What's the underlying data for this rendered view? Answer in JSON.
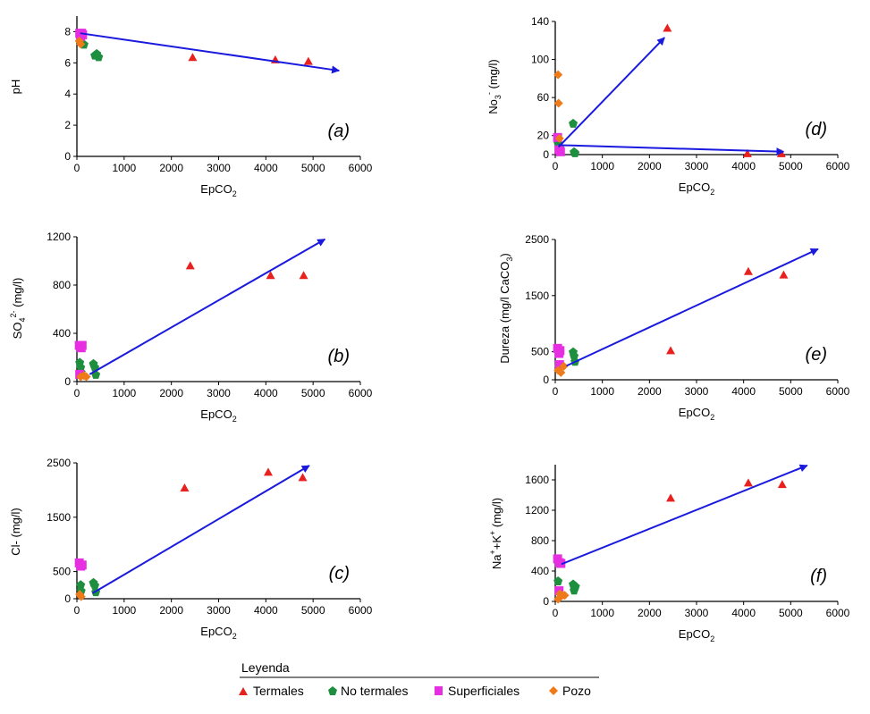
{
  "colors": {
    "axis": "#000000",
    "arrow": "#1a1adf",
    "termales": "#e8201e",
    "no_termales": "#1e8f3e",
    "superficiales": "#e62fe0",
    "pozo": "#ef7a1a"
  },
  "chart_data": [
    {
      "id": "a",
      "type": "scatter",
      "panel_label": "(a)",
      "xlabel": "EpCO",
      "xlabel_sub": "2",
      "ylabel": "pH",
      "xlim": [
        0,
        6000
      ],
      "ylim": [
        0,
        9
      ],
      "xticks": [
        0,
        1000,
        2000,
        3000,
        4000,
        5000,
        6000
      ],
      "yticks": [
        0,
        2,
        4,
        6,
        8
      ],
      "series": [
        {
          "name": "Termales",
          "points": [
            [
              2450,
              6.35
            ],
            [
              4200,
              6.2
            ],
            [
              4900,
              6.1
            ]
          ]
        },
        {
          "name": "No termales",
          "points": [
            [
              150,
              7.2
            ],
            [
              380,
              6.5
            ],
            [
              420,
              6.6
            ],
            [
              460,
              6.4
            ]
          ]
        },
        {
          "name": "Superficiales",
          "points": [
            [
              60,
              7.9
            ],
            [
              80,
              7.7
            ],
            [
              100,
              7.9
            ],
            [
              120,
              7.8
            ]
          ]
        },
        {
          "name": "Pozo",
          "points": [
            [
              50,
              7.4
            ],
            [
              80,
              7.2
            ]
          ]
        }
      ],
      "arrows": [
        [
          [
            70,
            7.9
          ],
          [
            5550,
            5.5
          ]
        ]
      ]
    },
    {
      "id": "d",
      "type": "scatter",
      "panel_label": "(d)",
      "xlabel": "EpCO",
      "xlabel_sub": "2",
      "ylabel": "No3- (mg/l)",
      "xlim": [
        0,
        6000
      ],
      "ylim": [
        0,
        140
      ],
      "xticks": [
        0,
        1000,
        2000,
        3000,
        4000,
        5000,
        6000
      ],
      "yticks": [
        0,
        20,
        60,
        100,
        140
      ],
      "series": [
        {
          "name": "Termales",
          "points": [
            [
              2380,
              133
            ],
            [
              4080,
              1
            ],
            [
              4800,
              1
            ]
          ]
        },
        {
          "name": "No termales",
          "points": [
            [
              60,
              12
            ],
            [
              100,
              7
            ],
            [
              380,
              33
            ],
            [
              400,
              3
            ],
            [
              420,
              2
            ]
          ]
        },
        {
          "name": "Superficiales",
          "points": [
            [
              50,
              18
            ],
            [
              80,
              5
            ],
            [
              110,
              3
            ]
          ]
        },
        {
          "name": "Pozo",
          "points": [
            [
              60,
              84
            ],
            [
              70,
              54
            ],
            [
              90,
              17
            ]
          ]
        }
      ],
      "arrows": [
        [
          [
            70,
            8
          ],
          [
            2320,
            123
          ]
        ],
        [
          [
            70,
            10
          ],
          [
            4850,
            3
          ]
        ]
      ]
    },
    {
      "id": "b",
      "type": "scatter",
      "panel_label": "(b)",
      "xlabel": "EpCO",
      "xlabel_sub": "2",
      "ylabel": "SO42- (mg/l)",
      "xlim": [
        0,
        6000
      ],
      "ylim": [
        0,
        1200
      ],
      "xticks": [
        0,
        1000,
        2000,
        3000,
        4000,
        5000,
        6000
      ],
      "yticks": [
        0,
        400,
        800,
        1200
      ],
      "series": [
        {
          "name": "Termales",
          "points": [
            [
              2400,
              960
            ],
            [
              4100,
              880
            ],
            [
              4800,
              880
            ]
          ]
        },
        {
          "name": "No termales",
          "points": [
            [
              60,
              160
            ],
            [
              80,
              120
            ],
            [
              90,
              80
            ],
            [
              350,
              150
            ],
            [
              380,
              120
            ],
            [
              400,
              60
            ]
          ]
        },
        {
          "name": "Superficiales",
          "points": [
            [
              50,
              300
            ],
            [
              90,
              280
            ],
            [
              110,
              300
            ],
            [
              60,
              60
            ]
          ]
        },
        {
          "name": "Pozo",
          "points": [
            [
              80,
              40
            ],
            [
              150,
              50
            ],
            [
              200,
              40
            ]
          ]
        }
      ],
      "arrows": [
        [
          [
            270,
            60
          ],
          [
            5250,
            1180
          ]
        ]
      ]
    },
    {
      "id": "e",
      "type": "scatter",
      "panel_label": "(e)",
      "xlabel": "EpCO",
      "xlabel_sub": "2",
      "ylabel": "Dureza (mg/l CaCO3)",
      "xlim": [
        0,
        6000
      ],
      "ylim": [
        0,
        2500
      ],
      "xticks": [
        0,
        1000,
        2000,
        3000,
        4000,
        5000,
        6000
      ],
      "yticks": [
        0,
        500,
        1500,
        2500
      ],
      "series": [
        {
          "name": "Termales",
          "points": [
            [
              2450,
              520
            ],
            [
              4100,
              1930
            ],
            [
              4850,
              1870
            ]
          ]
        },
        {
          "name": "No termales",
          "points": [
            [
              80,
              250
            ],
            [
              380,
              500
            ],
            [
              400,
              430
            ],
            [
              420,
              330
            ]
          ]
        },
        {
          "name": "Superficiales",
          "points": [
            [
              50,
              560
            ],
            [
              80,
              470
            ],
            [
              100,
              520
            ],
            [
              90,
              270
            ]
          ]
        },
        {
          "name": "Pozo",
          "points": [
            [
              60,
              170
            ],
            [
              120,
              130
            ],
            [
              180,
              240
            ]
          ]
        }
      ],
      "arrows": [
        [
          [
            240,
            250
          ],
          [
            5580,
            2330
          ]
        ]
      ]
    },
    {
      "id": "c",
      "type": "scatter",
      "panel_label": "(c)",
      "xlabel": "EpCO",
      "xlabel_sub": "2",
      "ylabel": "Cl- (mg/l)",
      "xlim": [
        0,
        6000
      ],
      "ylim": [
        0,
        2500
      ],
      "xticks": [
        0,
        1000,
        2000,
        3000,
        4000,
        5000,
        6000
      ],
      "yticks": [
        0,
        500,
        1500,
        2500
      ],
      "series": [
        {
          "name": "Termales",
          "points": [
            [
              2280,
              2040
            ],
            [
              4050,
              2330
            ],
            [
              4780,
              2230
            ]
          ]
        },
        {
          "name": "No termales",
          "points": [
            [
              80,
              260
            ],
            [
              90,
              150
            ],
            [
              350,
              300
            ],
            [
              380,
              250
            ],
            [
              400,
              130
            ]
          ]
        },
        {
          "name": "Superficiales",
          "points": [
            [
              50,
              660
            ],
            [
              80,
              600
            ],
            [
              110,
              620
            ]
          ]
        },
        {
          "name": "Pozo",
          "points": [
            [
              60,
              80
            ],
            [
              90,
              40
            ]
          ]
        }
      ],
      "arrows": [
        [
          [
            330,
            100
          ],
          [
            4920,
            2450
          ]
        ]
      ]
    },
    {
      "id": "f",
      "type": "scatter",
      "panel_label": "(f)",
      "xlabel": "EpCO",
      "xlabel_sub": "2",
      "ylabel": "Na++K+ (mg/l)",
      "xlim": [
        0,
        6000
      ],
      "ylim": [
        0,
        1800
      ],
      "xticks": [
        0,
        1000,
        2000,
        3000,
        4000,
        5000,
        6000
      ],
      "yticks": [
        0,
        400,
        800,
        1200,
        1600
      ],
      "series": [
        {
          "name": "Termales",
          "points": [
            [
              2450,
              1360
            ],
            [
              4100,
              1560
            ],
            [
              4820,
              1540
            ]
          ]
        },
        {
          "name": "No termales",
          "points": [
            [
              60,
              270
            ],
            [
              380,
              230
            ],
            [
              400,
              150
            ],
            [
              430,
              200
            ]
          ]
        },
        {
          "name": "Superficiales",
          "points": [
            [
              50,
              560
            ],
            [
              90,
              510
            ],
            [
              120,
              500
            ],
            [
              80,
              140
            ]
          ]
        },
        {
          "name": "Pozo",
          "points": [
            [
              60,
              30
            ],
            [
              100,
              100
            ],
            [
              150,
              80
            ],
            [
              200,
              80
            ]
          ]
        }
      ],
      "arrows": [
        [
          [
            130,
            490
          ],
          [
            5350,
            1790
          ]
        ]
      ]
    }
  ],
  "legend": {
    "title": "Leyenda",
    "items": [
      "Termales",
      "No termales",
      "Superficiales",
      "Pozo"
    ]
  }
}
